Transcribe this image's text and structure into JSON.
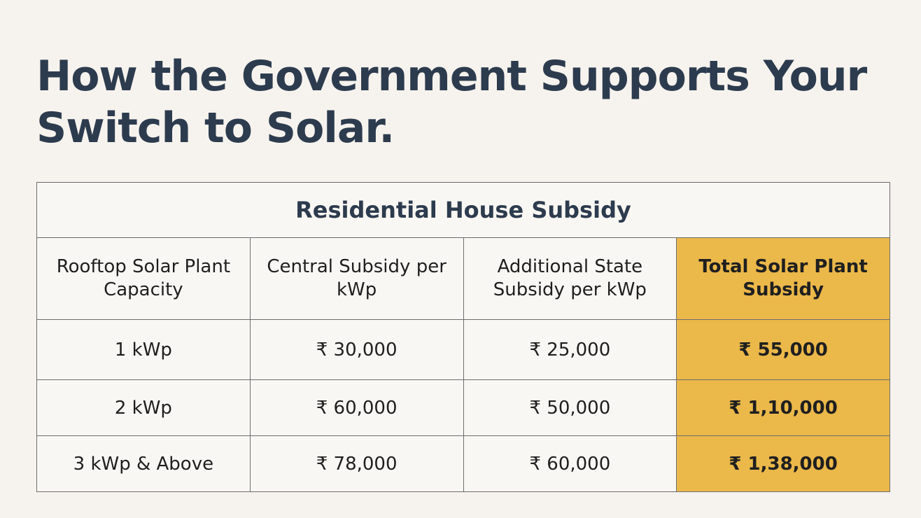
{
  "title": "How the Government Supports Your Switch to Solar.",
  "table": {
    "caption": "Residential House Subsidy",
    "headers": [
      "Rooftop Solar Plant Capacity",
      "Central Subsidy per kWp",
      "Additional State Subsidy per kWp",
      "Total Solar Plant Subsidy"
    ],
    "rows": [
      [
        "1 kWp",
        "₹ 30,000",
        "₹ 25,000",
        "₹ 55,000"
      ],
      [
        "2 kWp",
        "₹ 60,000",
        "₹ 50,000",
        "₹ 1,10,000"
      ],
      [
        "3 kWp & Above",
        "₹ 78,000",
        "₹ 60,000",
        "₹ 1,38,000"
      ]
    ]
  }
}
